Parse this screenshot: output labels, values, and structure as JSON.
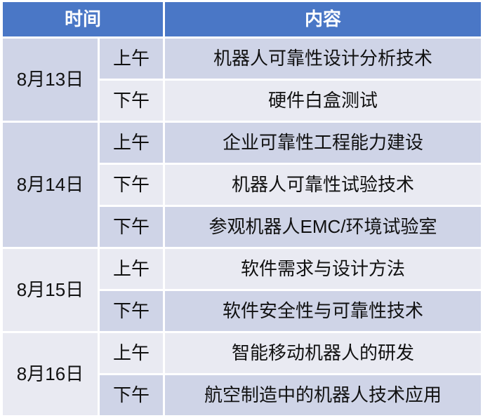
{
  "table": {
    "columns": {
      "time": "时间",
      "content": "内容"
    },
    "colors": {
      "header_bg": "#4a77c6",
      "header_text": "#ffffff",
      "row_band_dark": "#cfd4e7",
      "row_band_light": "#e9eaf2",
      "body_text": "#111111",
      "divider": "#ffffff"
    },
    "groups": [
      {
        "date": "8月13日",
        "sessions": [
          {
            "period": "上午",
            "content": "机器人可靠性设计分析技术"
          },
          {
            "period": "下午",
            "content": "硬件白盒测试"
          }
        ]
      },
      {
        "date": "8月14日",
        "sessions": [
          {
            "period": "上午",
            "content": "企业可靠性工程能力建设"
          },
          {
            "period": "下午",
            "content": "机器人可靠性试验技术"
          },
          {
            "period": "下午",
            "content": "参观机器人EMC/环境试验室"
          }
        ]
      },
      {
        "date": "8月15日",
        "sessions": [
          {
            "period": "上午",
            "content": "软件需求与设计方法"
          },
          {
            "period": "下午",
            "content": "软件安全性与可靠性技术"
          }
        ]
      },
      {
        "date": "8月16日",
        "sessions": [
          {
            "period": "上午",
            "content": "智能移动机器人的研发"
          },
          {
            "period": "下午",
            "content": "航空制造中的机器人技术应用"
          }
        ]
      }
    ]
  }
}
